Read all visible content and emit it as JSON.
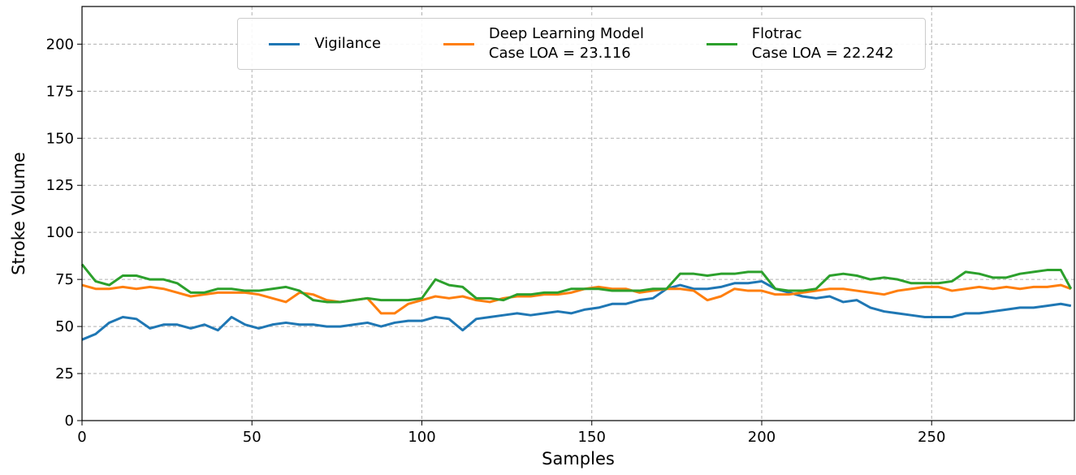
{
  "chart_data": {
    "type": "line",
    "xlabel": "Samples",
    "ylabel": "Stroke Volume",
    "xlim": [
      0,
      292
    ],
    "ylim": [
      0,
      220
    ],
    "xticks": [
      0,
      50,
      100,
      150,
      200,
      250
    ],
    "yticks": [
      0,
      25,
      50,
      75,
      100,
      125,
      150,
      175,
      200
    ],
    "grid": true,
    "legend": "upper center",
    "x": [
      0,
      4,
      8,
      12,
      16,
      20,
      24,
      28,
      32,
      36,
      40,
      44,
      48,
      52,
      56,
      60,
      64,
      68,
      72,
      76,
      80,
      84,
      88,
      92,
      96,
      100,
      104,
      108,
      112,
      116,
      120,
      124,
      128,
      132,
      136,
      140,
      144,
      148,
      152,
      156,
      160,
      164,
      168,
      172,
      176,
      180,
      184,
      188,
      192,
      196,
      200,
      204,
      208,
      212,
      216,
      220,
      224,
      228,
      232,
      236,
      240,
      244,
      248,
      252,
      256,
      260,
      264,
      268,
      272,
      276,
      280,
      284,
      288,
      291
    ],
    "series": [
      {
        "name": "Vigilance",
        "color": "#1f77b4",
        "values": [
          43,
          46,
          52,
          55,
          54,
          49,
          51,
          51,
          49,
          51,
          48,
          55,
          51,
          49,
          51,
          52,
          51,
          51,
          50,
          50,
          51,
          52,
          50,
          52,
          53,
          53,
          55,
          54,
          48,
          54,
          55,
          56,
          57,
          56,
          57,
          58,
          57,
          59,
          60,
          62,
          62,
          64,
          65,
          70,
          72,
          70,
          70,
          71,
          73,
          73,
          74,
          70,
          68,
          66,
          65,
          66,
          63,
          64,
          60,
          58,
          57,
          56,
          55,
          55,
          55,
          57,
          57,
          58,
          59,
          60,
          60,
          61,
          62,
          61
        ]
      },
      {
        "name": "Deep Learning Model\nCase LOA = 23.116",
        "color": "#ff7f0e",
        "values": [
          72,
          70,
          70,
          71,
          70,
          71,
          70,
          68,
          66,
          67,
          68,
          68,
          68,
          67,
          65,
          63,
          68,
          67,
          64,
          63,
          64,
          65,
          57,
          57,
          62,
          64,
          66,
          65,
          66,
          64,
          63,
          65,
          66,
          66,
          67,
          67,
          68,
          70,
          71,
          70,
          70,
          68,
          69,
          70,
          70,
          69,
          64,
          66,
          70,
          69,
          69,
          67,
          67,
          68,
          69,
          70,
          70,
          69,
          68,
          67,
          69,
          70,
          71,
          71,
          69,
          70,
          71,
          70,
          71,
          70,
          71,
          71,
          72,
          70
        ]
      },
      {
        "name": "Flotrac\nCase LOA = 22.242",
        "color": "#2ca02c",
        "values": [
          83,
          74,
          72,
          77,
          77,
          75,
          75,
          73,
          68,
          68,
          70,
          70,
          69,
          69,
          70,
          71,
          69,
          64,
          63,
          63,
          64,
          65,
          64,
          64,
          64,
          65,
          75,
          72,
          71,
          65,
          65,
          64,
          67,
          67,
          68,
          68,
          70,
          70,
          70,
          69,
          69,
          69,
          70,
          70,
          78,
          78,
          77,
          78,
          78,
          79,
          79,
          70,
          69,
          69,
          70,
          77,
          78,
          77,
          75,
          76,
          75,
          73,
          73,
          73,
          74,
          79,
          78,
          76,
          76,
          78,
          79,
          80,
          80,
          70
        ]
      }
    ]
  }
}
